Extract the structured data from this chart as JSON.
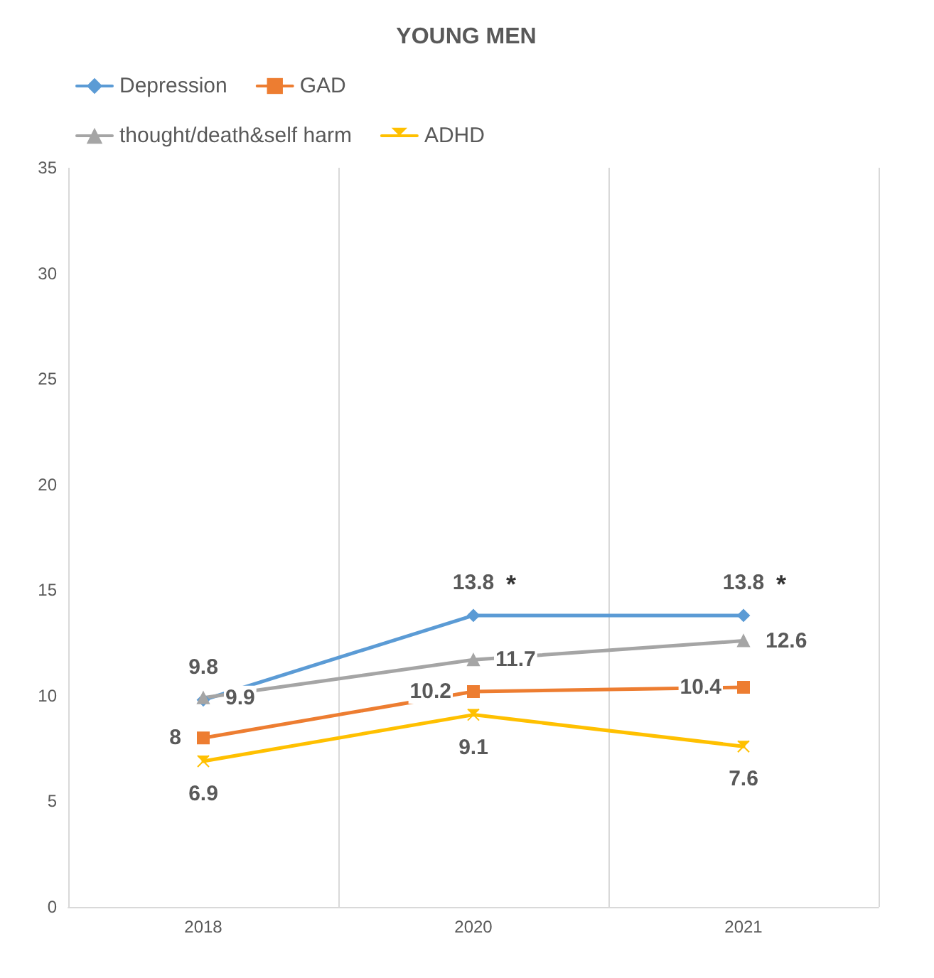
{
  "chart_data": {
    "type": "line",
    "title": "YOUNG MEN",
    "categories": [
      "2018",
      "2020",
      "2021"
    ],
    "series": [
      {
        "name": "Depression",
        "color": "#5b9bd5",
        "values": [
          9.8,
          13.8,
          13.8
        ],
        "marker": "diamond"
      },
      {
        "name": "GAD",
        "color": "#ed7d31",
        "values": [
          8,
          10.2,
          10.4
        ],
        "marker": "square"
      },
      {
        "name": "thought/death&self harm",
        "color": "#a5a5a5",
        "values": [
          9.9,
          11.7,
          12.6
        ],
        "marker": "triangle"
      },
      {
        "name": "ADHD",
        "color": "#ffc000",
        "values": [
          6.9,
          9.1,
          7.6
        ],
        "marker": "cross"
      }
    ],
    "ylim": [
      0,
      35
    ],
    "yticks": [
      0,
      5,
      10,
      15,
      20,
      25,
      30,
      35
    ],
    "grid": "x",
    "legend": "top",
    "data_labels": true,
    "annotations": [
      {
        "text": "*",
        "x": "2020",
        "y": 13.8
      },
      {
        "text": "*",
        "x": "2021",
        "y": 13.8
      }
    ]
  }
}
